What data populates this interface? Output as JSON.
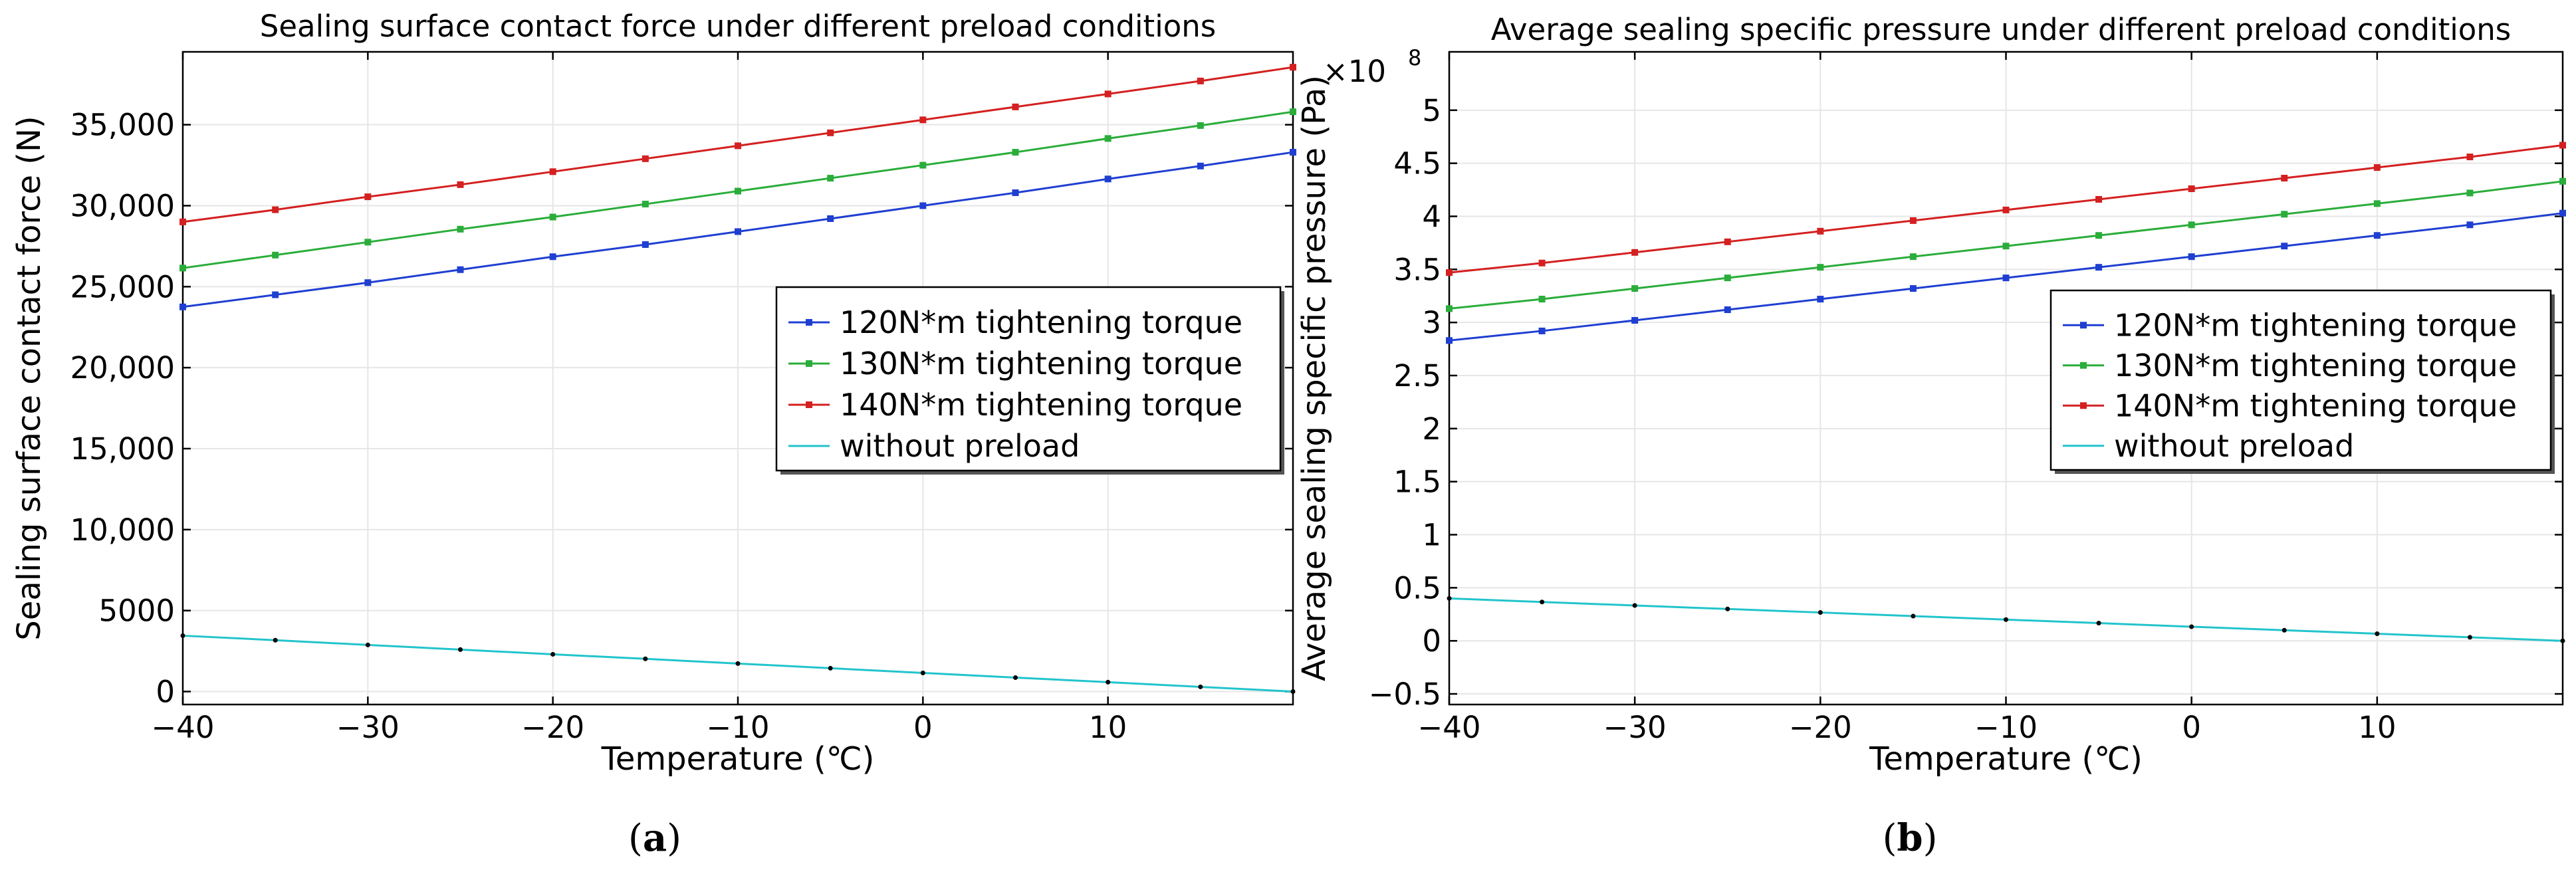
{
  "chart_data": [
    {
      "type": "line",
      "title": "Sealing surface contact force under different preload conditions",
      "xlabel": "Temperature (℃)",
      "ylabel": "Sealing surface contact force (N)",
      "xlim": [
        -40,
        20
      ],
      "ylim": [
        -800,
        39500
      ],
      "x": [
        -40,
        -35,
        -30,
        -25,
        -20,
        -15,
        -10,
        -5,
        0,
        5,
        10,
        15,
        20
      ],
      "xticks": [
        -40,
        -30,
        -20,
        -10,
        0,
        10
      ],
      "xtick_labels": [
        "−40",
        "−30",
        "−20",
        "−10",
        "0",
        "10"
      ],
      "yticks": [
        0,
        5000,
        10000,
        15000,
        20000,
        25000,
        30000,
        35000
      ],
      "ytick_labels": [
        "0",
        "5000",
        "10,000",
        "15,000",
        "20,000",
        "25,000",
        "30,000",
        "35,000"
      ],
      "grid": true,
      "legend_position": "right",
      "caption": "a",
      "series": [
        {
          "name": "120N*m tightening torque",
          "color": "#1f3fd1",
          "marker": "square",
          "values": [
            23750,
            24500,
            25250,
            26050,
            26850,
            27600,
            28400,
            29200,
            30000,
            30800,
            31650,
            32450,
            33300
          ]
        },
        {
          "name": "130N*m tightening torque",
          "color": "#2aad3a",
          "marker": "square",
          "values": [
            26150,
            26950,
            27750,
            28550,
            29300,
            30100,
            30900,
            31700,
            32500,
            33300,
            34150,
            34950,
            35800
          ]
        },
        {
          "name": "140N*m tightening torque",
          "color": "#d42020",
          "marker": "square",
          "values": [
            29000,
            29750,
            30550,
            31300,
            32100,
            32900,
            33700,
            34500,
            35300,
            36100,
            36900,
            37700,
            38550
          ]
        },
        {
          "name": "without preload",
          "color": "#22c4cc",
          "marker": "dot",
          "values": [
            3450,
            3170,
            2880,
            2590,
            2300,
            2020,
            1730,
            1440,
            1150,
            860,
            580,
            290,
            0
          ]
        }
      ]
    },
    {
      "type": "line",
      "title": "Average sealing specific pressure under different preload conditions",
      "xlabel": "Temperature (℃)",
      "ylabel": "Average sealing specific pressure (Pa)",
      "y_multiplier": "×10",
      "y_exponent": "8",
      "xlim": [
        -40,
        20
      ],
      "ylim": [
        -0.6,
        5.55
      ],
      "x": [
        -40,
        -35,
        -30,
        -25,
        -20,
        -15,
        -10,
        -5,
        0,
        5,
        10,
        15,
        20
      ],
      "xticks": [
        -40,
        -30,
        -20,
        -10,
        0,
        10
      ],
      "xtick_labels": [
        "−40",
        "−30",
        "−20",
        "−10",
        "0",
        "10"
      ],
      "yticks": [
        -0.5,
        0,
        0.5,
        1,
        1.5,
        2,
        2.5,
        3,
        3.5,
        4,
        4.5,
        5
      ],
      "ytick_labels": [
        "−0.5",
        "0",
        "0.5",
        "1",
        "1.5",
        "2",
        "2.5",
        "3",
        "3.5",
        "4",
        "4.5",
        "5"
      ],
      "grid": true,
      "legend_position": "right",
      "caption": "b",
      "series": [
        {
          "name": "120N*m tightening torque",
          "color": "#1f3fd1",
          "marker": "square",
          "values": [
            2.83,
            2.92,
            3.02,
            3.12,
            3.22,
            3.32,
            3.42,
            3.52,
            3.62,
            3.72,
            3.82,
            3.92,
            4.03
          ]
        },
        {
          "name": "130N*m tightening torque",
          "color": "#2aad3a",
          "marker": "square",
          "values": [
            3.13,
            3.22,
            3.32,
            3.42,
            3.52,
            3.62,
            3.72,
            3.82,
            3.92,
            4.02,
            4.12,
            4.22,
            4.33
          ]
        },
        {
          "name": "140N*m tightening torque",
          "color": "#d42020",
          "marker": "square",
          "values": [
            3.47,
            3.56,
            3.66,
            3.76,
            3.86,
            3.96,
            4.06,
            4.16,
            4.26,
            4.36,
            4.46,
            4.56,
            4.67
          ]
        },
        {
          "name": "without preload",
          "color": "#22c4cc",
          "marker": "dot",
          "values": [
            0.4,
            0.366,
            0.333,
            0.3,
            0.267,
            0.233,
            0.2,
            0.167,
            0.133,
            0.1,
            0.067,
            0.033,
            0
          ]
        }
      ]
    }
  ]
}
